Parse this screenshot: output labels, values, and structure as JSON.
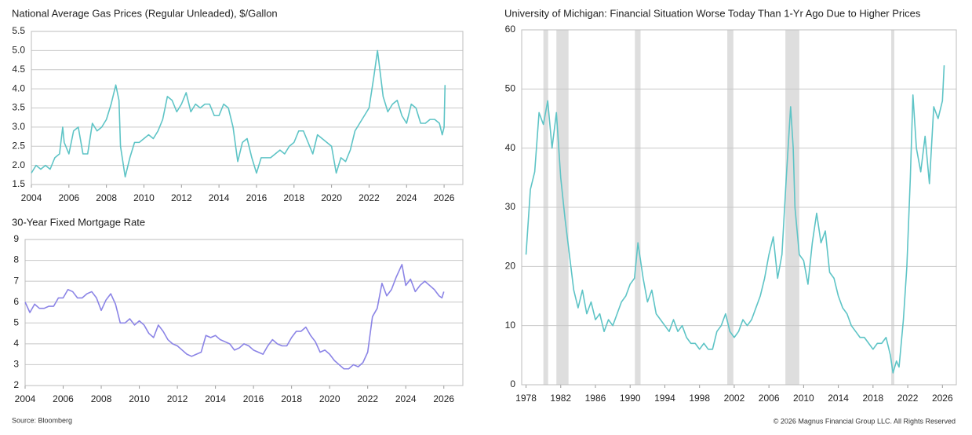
{
  "chart_data": [
    {
      "type": "line",
      "title": "National Average Gas Prices (Regular Unleaded), $/Gallon",
      "color": "#5ec4c6",
      "grid": true,
      "xlim": [
        2004,
        2027
      ],
      "xticks": [
        2004,
        2006,
        2008,
        2010,
        2012,
        2014,
        2016,
        2018,
        2020,
        2022,
        2024,
        2026
      ],
      "ylim": [
        1.5,
        5.5
      ],
      "yticks": [
        1.5,
        {
          "value": 2,
          "label": "2.0"
        },
        2.5,
        {
          "value": 3,
          "label": "3.0"
        },
        3.5,
        {
          "value": 4,
          "label": "4.0"
        },
        4.5,
        {
          "value": 5,
          "label": "5.0"
        },
        5.5
      ],
      "x": [
        2004.0,
        2004.25,
        2004.5,
        2004.75,
        2005.0,
        2005.25,
        2005.5,
        2005.67,
        2005.75,
        2006.0,
        2006.25,
        2006.5,
        2006.75,
        2007.0,
        2007.25,
        2007.5,
        2007.75,
        2008.0,
        2008.25,
        2008.5,
        2008.67,
        2008.75,
        2009.0,
        2009.25,
        2009.5,
        2009.75,
        2010.0,
        2010.25,
        2010.5,
        2010.75,
        2011.0,
        2011.25,
        2011.5,
        2011.75,
        2012.0,
        2012.25,
        2012.5,
        2012.75,
        2013.0,
        2013.25,
        2013.5,
        2013.75,
        2014.0,
        2014.25,
        2014.5,
        2014.75,
        2015.0,
        2015.25,
        2015.5,
        2015.75,
        2016.0,
        2016.25,
        2016.5,
        2016.75,
        2017.0,
        2017.25,
        2017.5,
        2017.75,
        2018.0,
        2018.25,
        2018.5,
        2018.75,
        2019.0,
        2019.25,
        2019.5,
        2019.75,
        2020.0,
        2020.25,
        2020.5,
        2020.75,
        2021.0,
        2021.25,
        2021.5,
        2021.75,
        2022.0,
        2022.25,
        2022.45,
        2022.75,
        2023.0,
        2023.25,
        2023.5,
        2023.75,
        2024.0,
        2024.25,
        2024.5,
        2024.75,
        2025.0,
        2025.25,
        2025.5,
        2025.75,
        2025.9,
        2026.0,
        2026.05
      ],
      "values": [
        1.8,
        2.0,
        1.9,
        2.0,
        1.9,
        2.2,
        2.3,
        3.0,
        2.6,
        2.3,
        2.9,
        3.0,
        2.3,
        2.3,
        3.1,
        2.9,
        3.0,
        3.2,
        3.6,
        4.1,
        3.7,
        2.5,
        1.7,
        2.2,
        2.6,
        2.6,
        2.7,
        2.8,
        2.7,
        2.9,
        3.2,
        3.8,
        3.7,
        3.4,
        3.6,
        3.9,
        3.4,
        3.6,
        3.5,
        3.6,
        3.6,
        3.3,
        3.3,
        3.6,
        3.5,
        3.0,
        2.1,
        2.6,
        2.7,
        2.2,
        1.8,
        2.2,
        2.2,
        2.2,
        2.3,
        2.4,
        2.3,
        2.5,
        2.6,
        2.9,
        2.9,
        2.6,
        2.3,
        2.8,
        2.7,
        2.6,
        2.5,
        1.8,
        2.2,
        2.1,
        2.4,
        2.9,
        3.1,
        3.3,
        3.5,
        4.3,
        5.0,
        3.8,
        3.4,
        3.6,
        3.7,
        3.3,
        3.1,
        3.6,
        3.5,
        3.1,
        3.1,
        3.2,
        3.2,
        3.1,
        2.8,
        3.0,
        4.1
      ]
    },
    {
      "type": "line",
      "title": "30-Year Fixed Mortgage Rate",
      "color": "#8b84e6",
      "grid": true,
      "xlim": [
        2004,
        2027
      ],
      "xticks": [
        2004,
        2006,
        2008,
        2010,
        2012,
        2014,
        2016,
        2018,
        2020,
        2022,
        2024,
        2026
      ],
      "ylim": [
        2,
        9
      ],
      "yticks": [
        2,
        3,
        4,
        5,
        6,
        7,
        8,
        9
      ],
      "x": [
        2004.0,
        2004.25,
        2004.5,
        2004.75,
        2005.0,
        2005.25,
        2005.5,
        2005.75,
        2006.0,
        2006.25,
        2006.5,
        2006.75,
        2007.0,
        2007.25,
        2007.5,
        2007.75,
        2008.0,
        2008.25,
        2008.5,
        2008.75,
        2009.0,
        2009.25,
        2009.5,
        2009.75,
        2010.0,
        2010.25,
        2010.5,
        2010.75,
        2011.0,
        2011.25,
        2011.5,
        2011.75,
        2012.0,
        2012.25,
        2012.5,
        2012.75,
        2013.0,
        2013.25,
        2013.5,
        2013.75,
        2014.0,
        2014.25,
        2014.5,
        2014.75,
        2015.0,
        2015.25,
        2015.5,
        2015.75,
        2016.0,
        2016.25,
        2016.5,
        2016.75,
        2017.0,
        2017.25,
        2017.5,
        2017.75,
        2018.0,
        2018.25,
        2018.5,
        2018.75,
        2019.0,
        2019.25,
        2019.5,
        2019.75,
        2020.0,
        2020.25,
        2020.5,
        2020.75,
        2021.0,
        2021.25,
        2021.5,
        2021.75,
        2022.0,
        2022.25,
        2022.5,
        2022.75,
        2023.0,
        2023.25,
        2023.5,
        2023.8,
        2024.0,
        2024.25,
        2024.5,
        2024.75,
        2025.0,
        2025.25,
        2025.5,
        2025.75,
        2025.9,
        2026.0
      ],
      "values": [
        6.0,
        5.5,
        5.9,
        5.7,
        5.7,
        5.8,
        5.8,
        6.2,
        6.2,
        6.6,
        6.5,
        6.2,
        6.2,
        6.4,
        6.5,
        6.2,
        5.6,
        6.1,
        6.4,
        5.9,
        5.0,
        5.0,
        5.2,
        4.9,
        5.1,
        4.9,
        4.5,
        4.3,
        4.9,
        4.6,
        4.2,
        4.0,
        3.9,
        3.7,
        3.5,
        3.4,
        3.5,
        3.6,
        4.4,
        4.3,
        4.4,
        4.2,
        4.1,
        4.0,
        3.7,
        3.8,
        4.0,
        3.9,
        3.7,
        3.6,
        3.5,
        3.9,
        4.2,
        4.0,
        3.9,
        3.9,
        4.3,
        4.6,
        4.6,
        4.8,
        4.4,
        4.1,
        3.6,
        3.7,
        3.5,
        3.2,
        3.0,
        2.8,
        2.8,
        3.0,
        2.9,
        3.1,
        3.6,
        5.3,
        5.7,
        6.9,
        6.3,
        6.6,
        7.2,
        7.8,
        6.8,
        7.1,
        6.5,
        6.8,
        7.0,
        6.8,
        6.6,
        6.3,
        6.2,
        6.5
      ]
    },
    {
      "type": "line",
      "title": "University of Michigan: Financial Situation Worse Today Than 1-Yr Ago Due to Higher Prices",
      "color": "#5ec4c6",
      "grid": true,
      "shade_color": "#dedede",
      "shaded_periods": [
        [
          1980.0,
          1980.55
        ],
        [
          1981.5,
          1982.9
        ],
        [
          1990.55,
          1991.2
        ],
        [
          2001.2,
          2001.9
        ],
        [
          2007.9,
          2009.5
        ],
        [
          2020.1,
          2020.45
        ]
      ],
      "xlim": [
        1977.5,
        2027.6
      ],
      "xticks": [
        1978,
        1982,
        1986,
        1990,
        1994,
        1998,
        2002,
        2006,
        2010,
        2014,
        2018,
        2022,
        2026
      ],
      "ylim": [
        0,
        60
      ],
      "yticks": [
        0,
        10,
        20,
        30,
        40,
        50,
        60
      ],
      "x": [
        1978,
        1978.5,
        1979,
        1979.5,
        1980,
        1980.5,
        1981,
        1981.5,
        1982,
        1982.5,
        1983,
        1983.5,
        1984,
        1984.5,
        1985,
        1985.5,
        1986,
        1986.5,
        1987,
        1987.5,
        1988,
        1988.5,
        1989,
        1989.5,
        1990,
        1990.5,
        1990.9,
        1991.5,
        1992,
        1992.5,
        1993,
        1993.5,
        1994,
        1994.5,
        1995,
        1995.5,
        1996,
        1996.5,
        1997,
        1997.5,
        1998,
        1998.5,
        1999,
        1999.5,
        2000,
        2000.5,
        2001,
        2001.5,
        2002,
        2002.5,
        2003,
        2003.5,
        2004,
        2004.5,
        2005,
        2005.5,
        2006,
        2006.5,
        2007,
        2007.5,
        2008,
        2008.5,
        2008.8,
        2009,
        2009.5,
        2010,
        2010.5,
        2011,
        2011.5,
        2012,
        2012.5,
        2013,
        2013.5,
        2014,
        2014.5,
        2015,
        2015.5,
        2016,
        2016.5,
        2017,
        2017.5,
        2018,
        2018.5,
        2019,
        2019.5,
        2020,
        2020.3,
        2020.7,
        2021,
        2021.5,
        2021.9,
        2022.3,
        2022.6,
        2023,
        2023.5,
        2024,
        2024.5,
        2025,
        2025.5,
        2026,
        2026.2
      ],
      "values": [
        22,
        33,
        36,
        46,
        44,
        48,
        40,
        46,
        35,
        28,
        22,
        16,
        13,
        16,
        12,
        14,
        11,
        12,
        9,
        11,
        10,
        12,
        14,
        15,
        17,
        18,
        24,
        18,
        14,
        16,
        12,
        11,
        10,
        9,
        11,
        9,
        10,
        8,
        7,
        7,
        6,
        7,
        6,
        6,
        9,
        10,
        12,
        9,
        8,
        9,
        11,
        10,
        11,
        13,
        15,
        18,
        22,
        25,
        18,
        22,
        35,
        47,
        40,
        30,
        22,
        21,
        17,
        24,
        29,
        24,
        26,
        19,
        18,
        15,
        13,
        12,
        10,
        9,
        8,
        8,
        7,
        6,
        7,
        7,
        8,
        5,
        2,
        4,
        3,
        11,
        20,
        35,
        49,
        40,
        36,
        42,
        34,
        47,
        45,
        48,
        54
      ]
    }
  ],
  "footer": {
    "source": "Source: Bloomberg",
    "copyright": "© 2026 Magnus Financial Group LLC. All Rights Reserved"
  }
}
